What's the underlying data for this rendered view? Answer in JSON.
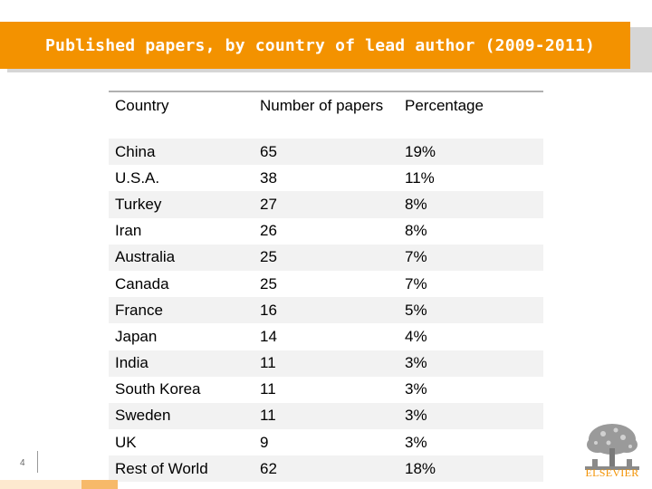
{
  "slide": {
    "title": "Published papers, by country of lead author (2009-2011)",
    "page_number": "4"
  },
  "table": {
    "headers": [
      "Country",
      "Number of papers",
      "Percentage"
    ],
    "rows": [
      [
        "China",
        "65",
        "19%"
      ],
      [
        "U.S.A.",
        "38",
        "11%"
      ],
      [
        "Turkey",
        "27",
        "8%"
      ],
      [
        "Iran",
        "26",
        "8%"
      ],
      [
        "Australia",
        "25",
        "7%"
      ],
      [
        "Canada",
        "25",
        "7%"
      ],
      [
        "France",
        "16",
        "5%"
      ],
      [
        "Japan",
        "14",
        "4%"
      ],
      [
        "India",
        "11",
        "3%"
      ],
      [
        "South Korea",
        "11",
        "3%"
      ],
      [
        "Sweden",
        "11",
        "3%"
      ],
      [
        "UK",
        "9",
        "3%"
      ],
      [
        "Rest of World",
        "62",
        "18%"
      ]
    ]
  },
  "logo": {
    "icon": "elsevier-tree-icon",
    "text": "ELSEVIER"
  },
  "colors": {
    "accent": "#f39200",
    "row_band": "#f2f2f2"
  }
}
